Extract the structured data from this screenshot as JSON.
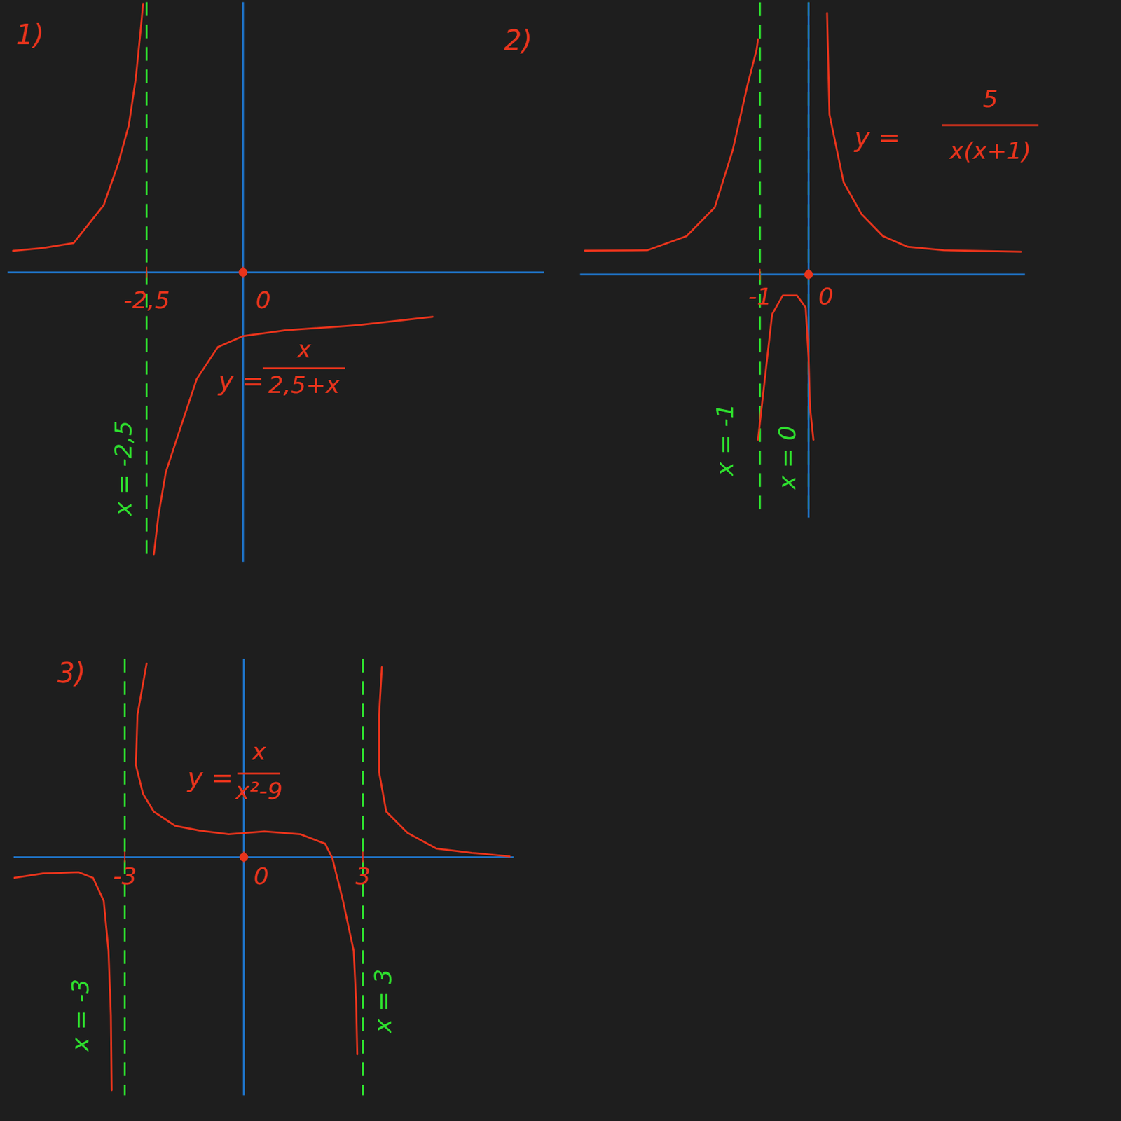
{
  "chart_data": [
    {
      "type": "line",
      "label": "1)",
      "color": "#e8341c",
      "xlim": [
        -6.1,
        7.8
      ],
      "ylim": [
        -7.5,
        7
      ],
      "xticks": [
        {
          "value": -2.5,
          "label": "-2,5"
        },
        0
      ],
      "yticks": [],
      "tick_labels": "x",
      "x": [
        -5.96,
        -5.19,
        -4.39,
        -3.61,
        -3.24,
        -2.96,
        -2.78,
        -2.65,
        -2.59,
        -2.5,
        -2.31,
        -2.19,
        -2.0,
        -1.57,
        -1.2,
        -0.65,
        0,
        1.11,
        2.96,
        4.91
      ],
      "values": [
        0.56,
        0.63,
        0.76,
        1.74,
        2.8,
        3.81,
        5.02,
        6.31,
        6.96,
        null,
        -7.3,
        -6.28,
        -5.17,
        -3.87,
        -2.76,
        -1.93,
        -1.65,
        -1.5,
        -1.37,
        -1.15
      ],
      "annotations": [
        {
          "text": "x = -2,5",
          "x": -2.5
        }
      ],
      "formula": {
        "lhs": "y =",
        "numerator": "x",
        "denominator": "2,5+x"
      }
    },
    {
      "type": "line",
      "label": "2)",
      "color": "#e8341c",
      "xlim": [
        -4.7,
        4.45
      ],
      "ylim": [
        -5,
        5.6
      ],
      "xticks": [
        -1,
        0
      ],
      "yticks": [],
      "tick_labels": "x",
      "x": [
        -4.6,
        -3.32,
        -2.51,
        -1.93,
        -1.56,
        -1.26,
        -1.07,
        -1.04,
        null,
        -1.04,
        -0.9,
        -0.75,
        -0.53,
        -0.24,
        -0.06,
        0,
        0.03,
        0.1,
        null,
        0.38,
        0.43,
        0.72,
        1.09,
        1.53,
        2.04,
        2.78,
        4.37
      ],
      "values": [
        0.49,
        0.5,
        0.79,
        1.38,
        2.56,
        3.88,
        4.62,
        4.84,
        null,
        -3.4,
        -2.15,
        -0.82,
        -0.43,
        -0.43,
        -0.68,
        -1.71,
        -2.74,
        -3.4,
        null,
        5.38,
        3.29,
        1.9,
        1.24,
        0.79,
        0.57,
        0.5,
        0.47
      ],
      "annotations": [
        {
          "text": "x = -1",
          "x": -1
        },
        {
          "text": "x = 0",
          "x": 0
        }
      ],
      "formula": {
        "lhs": "y =",
        "numerator": "5",
        "denominator": "x(x+1)"
      }
    },
    {
      "type": "line",
      "label": "3)",
      "color": "#e8341c",
      "xlim": [
        -5.8,
        6.8
      ],
      "ylim": [
        -6,
        5
      ],
      "xticks": [
        -3,
        0,
        3
      ],
      "yticks": [],
      "tick_labels": "x",
      "x": [
        -5.78,
        -5.06,
        -4.16,
        -3.8,
        -3.53,
        -3.41,
        -3.35,
        -3.33,
        null,
        -2.45,
        -2.68,
        -2.72,
        -2.54,
        -2.27,
        -1.73,
        -1.1,
        -0.38,
        0.52,
        1.42,
        2.05,
        2.23,
        2.5,
        2.77,
        2.83,
        2.86,
        null,
        3.48,
        3.41,
        3.41,
        3.59,
        4.13,
        4.85,
        5.75,
        6.7
      ],
      "values": [
        -0.52,
        -0.41,
        -0.38,
        -0.52,
        -1.1,
        -2.36,
        -3.98,
        -5.87,
        null,
        4.88,
        3.59,
        2.32,
        1.6,
        1.15,
        0.79,
        0.67,
        0.58,
        0.65,
        0.58,
        0.34,
        -0.02,
        -1.1,
        -2.36,
        -3.62,
        -4.97,
        null,
        4.79,
        3.59,
        2.14,
        1.15,
        0.61,
        0.22,
        0.11,
        0.02
      ],
      "annotations": [
        {
          "text": "x = -3",
          "x": -3
        },
        {
          "text": "x = 3",
          "x": 3
        }
      ],
      "formula": {
        "lhs": "y =",
        "numerator": "x",
        "denominator": "x²-9"
      }
    }
  ]
}
